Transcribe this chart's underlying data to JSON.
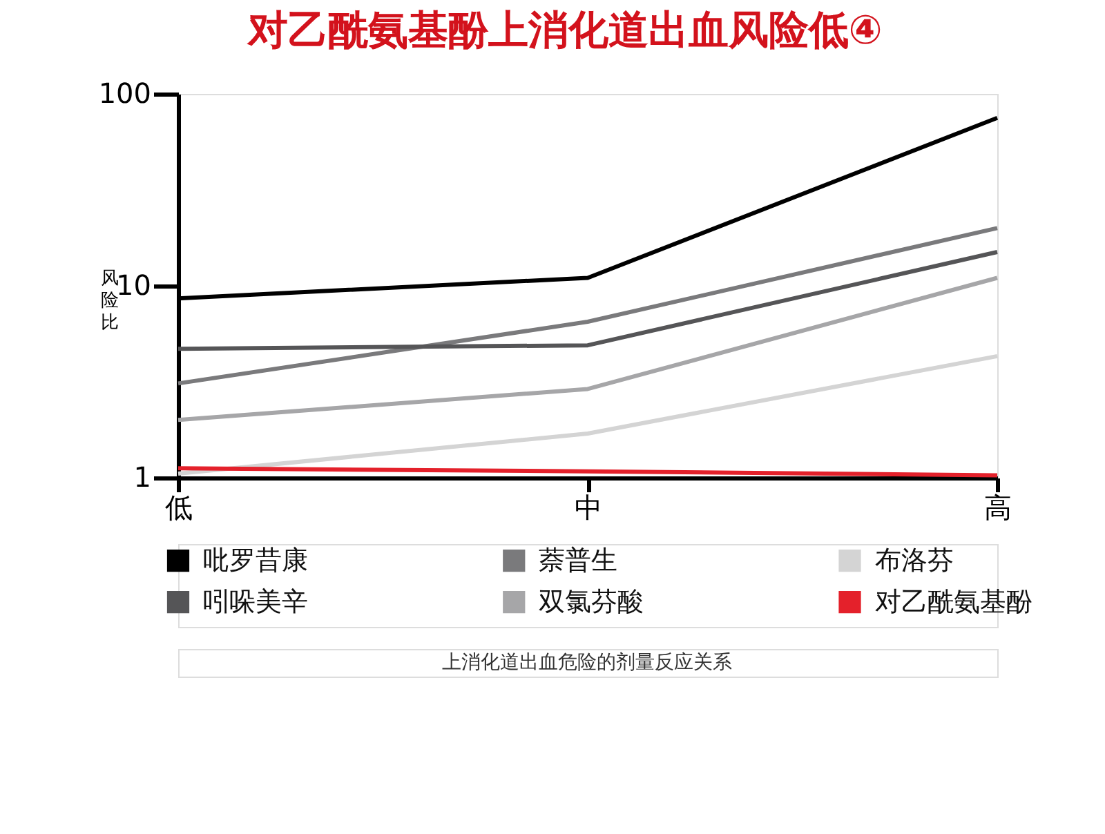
{
  "chart_data": {
    "type": "line",
    "title": "对乙酰氨基酚上消化道出血风险低④",
    "ylabel": "风险比",
    "categories": [
      "低",
      "中",
      "高"
    ],
    "series": [
      {
        "name": "吡罗昔康",
        "color": "#000000",
        "values": [
          8.6,
          11,
          75
        ]
      },
      {
        "name": "萘普生",
        "color": "#7a7a7c",
        "values": [
          3.1,
          6.5,
          20
        ]
      },
      {
        "name": "布洛芬",
        "color": "#d4d4d4",
        "values": [
          1.05,
          1.7,
          4.3
        ]
      },
      {
        "name": "吲哚美辛",
        "color": "#555557",
        "values": [
          4.7,
          4.9,
          15
        ]
      },
      {
        "name": "双氯芬酸",
        "color": "#a6a6a8",
        "values": [
          2.0,
          2.9,
          11
        ]
      },
      {
        "name": "对乙酰氨基酚",
        "color": "#e4212b",
        "values": [
          1.12,
          1.08,
          1.03
        ]
      }
    ],
    "ylim": [
      1,
      100
    ],
    "yticks": [
      1,
      10,
      100
    ],
    "log": true,
    "grid": false,
    "legend": "bottom",
    "marker": "none",
    "line_style": "solid",
    "annotations": [
      "上消化道出血危险的剂量反应关系"
    ]
  }
}
